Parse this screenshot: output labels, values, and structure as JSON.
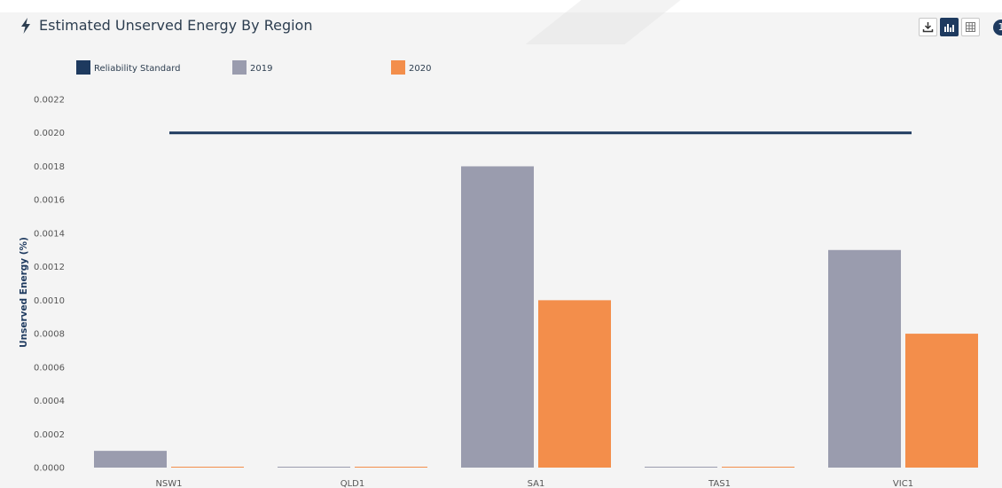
{
  "header": {
    "title": "Estimated Unserved Energy By Region",
    "title_icon": "lightning-bolt-icon"
  },
  "toolbar": {
    "buttons": [
      {
        "icon": "download-icon",
        "active": false
      },
      {
        "icon": "bar-chart-icon",
        "active": true
      },
      {
        "icon": "table-icon",
        "active": false
      }
    ],
    "info_label": "1"
  },
  "colors": {
    "reliability": "#1e3a5f",
    "series_2019": "#9a9cae",
    "series_2020": "#f38e4b",
    "background": "#f4f4f4"
  },
  "chart_data": {
    "type": "bar",
    "title": "Estimated Unserved Energy By Region",
    "xlabel": "",
    "ylabel": "Unserved Energy (%)",
    "ylim": [
      0,
      0.0022
    ],
    "yticks": [
      "0.0000",
      "0.0002",
      "0.0004",
      "0.0006",
      "0.0008",
      "0.0010",
      "0.0012",
      "0.0014",
      "0.0016",
      "0.0018",
      "0.0020",
      "0.0022"
    ],
    "categories": [
      "NSW1",
      "QLD1",
      "SA1",
      "TAS1",
      "VIC1"
    ],
    "series": [
      {
        "name": "2019",
        "type": "bar",
        "color": "#9a9cae",
        "values": [
          0.0001,
          0.0,
          0.0018,
          0.0,
          0.0013
        ]
      },
      {
        "name": "2020",
        "type": "bar",
        "color": "#f38e4b",
        "values": [
          0.0,
          0.0,
          0.001,
          0.0,
          0.0008
        ]
      }
    ],
    "reference_line": {
      "name": "Reliability Standard",
      "value": 0.002,
      "color": "#1e3a5f"
    },
    "legend": {
      "placement": "top-left",
      "entries": [
        "Reliability Standard",
        "2019",
        "2020"
      ]
    },
    "grid": false
  }
}
